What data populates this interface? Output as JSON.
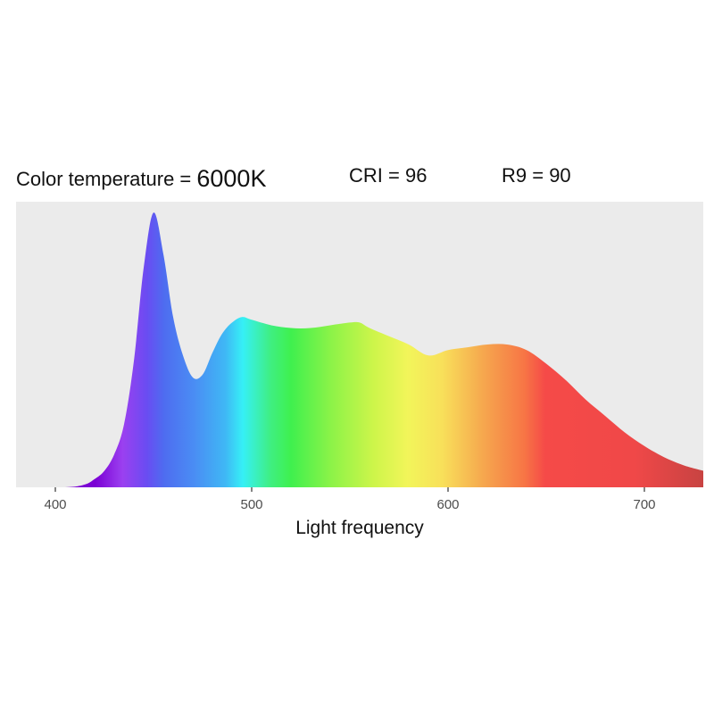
{
  "header": {
    "color_temp_label": "Color temperature = ",
    "color_temp_value": "6000K",
    "cri_text": "CRI = 96",
    "r9_text": "R9 = 90"
  },
  "colors": {
    "panel_background": "#ebebeb",
    "tick_color": "#333333"
  },
  "chart_data": {
    "type": "area",
    "title": "",
    "xlabel": "Light frequency",
    "ylabel": "",
    "xlim": [
      380,
      730
    ],
    "ylim": [
      0,
      1.04
    ],
    "grid": false,
    "x_ticks": [
      400,
      500,
      600,
      700
    ],
    "x_tick_labels": [
      "400",
      "500",
      "600",
      "700"
    ],
    "fill": "visible-spectrum gradient (violet to red)",
    "series": [
      {
        "x": [
          380,
          405,
          415,
          420,
          425,
          430,
          435,
          440,
          445,
          450,
          455,
          460,
          465,
          470,
          475,
          480,
          485,
          490,
          495,
          500,
          510,
          520,
          530,
          540,
          550,
          555,
          560,
          570,
          580,
          590,
          600,
          610,
          620,
          630,
          640,
          650,
          660,
          670,
          680,
          690,
          700,
          710,
          720,
          730
        ],
        "values": [
          0,
          0,
          0.01,
          0.03,
          0.06,
          0.12,
          0.23,
          0.46,
          0.8,
          1.0,
          0.85,
          0.62,
          0.48,
          0.4,
          0.41,
          0.49,
          0.56,
          0.6,
          0.62,
          0.61,
          0.59,
          0.58,
          0.58,
          0.59,
          0.6,
          0.6,
          0.58,
          0.55,
          0.52,
          0.48,
          0.5,
          0.51,
          0.52,
          0.52,
          0.5,
          0.45,
          0.39,
          0.32,
          0.26,
          0.2,
          0.15,
          0.11,
          0.08,
          0.06
        ]
      }
    ]
  }
}
